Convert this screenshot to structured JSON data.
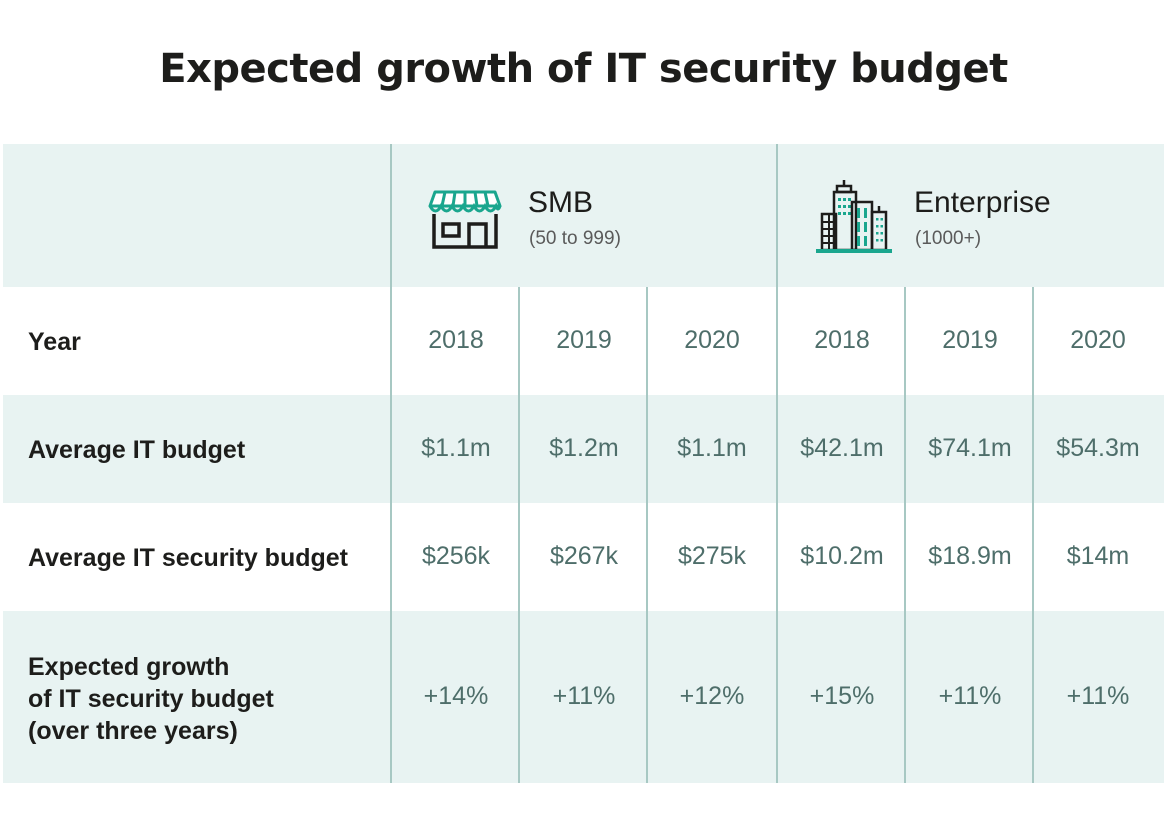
{
  "title": "Expected growth of IT security budget",
  "segments": [
    {
      "name": "SMB",
      "subtitle": "(50 to 999)",
      "icon": "storefront-icon"
    },
    {
      "name": "Enterprise",
      "subtitle": "(1000+)",
      "icon": "office-buildings-icon"
    }
  ],
  "rows": {
    "year": {
      "label": "Year",
      "values": [
        "2018",
        "2019",
        "2020",
        "2018",
        "2019",
        "2020"
      ]
    },
    "it_budget": {
      "label": "Average IT budget",
      "values": [
        "$1.1m",
        "$1.2m",
        "$1.1m",
        "$42.1m",
        "$74.1m",
        "$54.3m"
      ]
    },
    "security_budget": {
      "label": "Average IT security budget",
      "values": [
        "$256k",
        "$267k",
        "$275k",
        "$10.2m",
        "$18.9m",
        "$14m"
      ]
    },
    "growth": {
      "label_lines": [
        "Expected growth",
        "of IT security budget",
        "(over three years)"
      ],
      "values": [
        "+14%",
        "+11%",
        "+12%",
        "+15%",
        "+11%",
        "+11%"
      ]
    }
  },
  "colors": {
    "band": "#e8f3f2",
    "divider": "#a7c8c3",
    "accent": "#1aa68e",
    "value_text": "#4e6e6a"
  },
  "chart_data": {
    "type": "table",
    "title": "Expected growth of IT security budget",
    "column_groups": [
      {
        "name": "SMB (50 to 999)",
        "years": [
          "2018",
          "2019",
          "2020"
        ]
      },
      {
        "name": "Enterprise (1000+)",
        "years": [
          "2018",
          "2019",
          "2020"
        ]
      }
    ],
    "rows": [
      {
        "label": "Average IT budget",
        "SMB": [
          "$1.1m",
          "$1.2m",
          "$1.1m"
        ],
        "Enterprise": [
          "$42.1m",
          "$74.1m",
          "$54.3m"
        ]
      },
      {
        "label": "Average IT security budget",
        "SMB": [
          "$256k",
          "$267k",
          "$275k"
        ],
        "Enterprise": [
          "$10.2m",
          "$18.9m",
          "$14m"
        ]
      },
      {
        "label": "Expected growth of IT security budget (over three years)",
        "SMB": [
          "+14%",
          "+11%",
          "+12%"
        ],
        "Enterprise": [
          "+15%",
          "+11%",
          "+11%"
        ]
      }
    ]
  }
}
